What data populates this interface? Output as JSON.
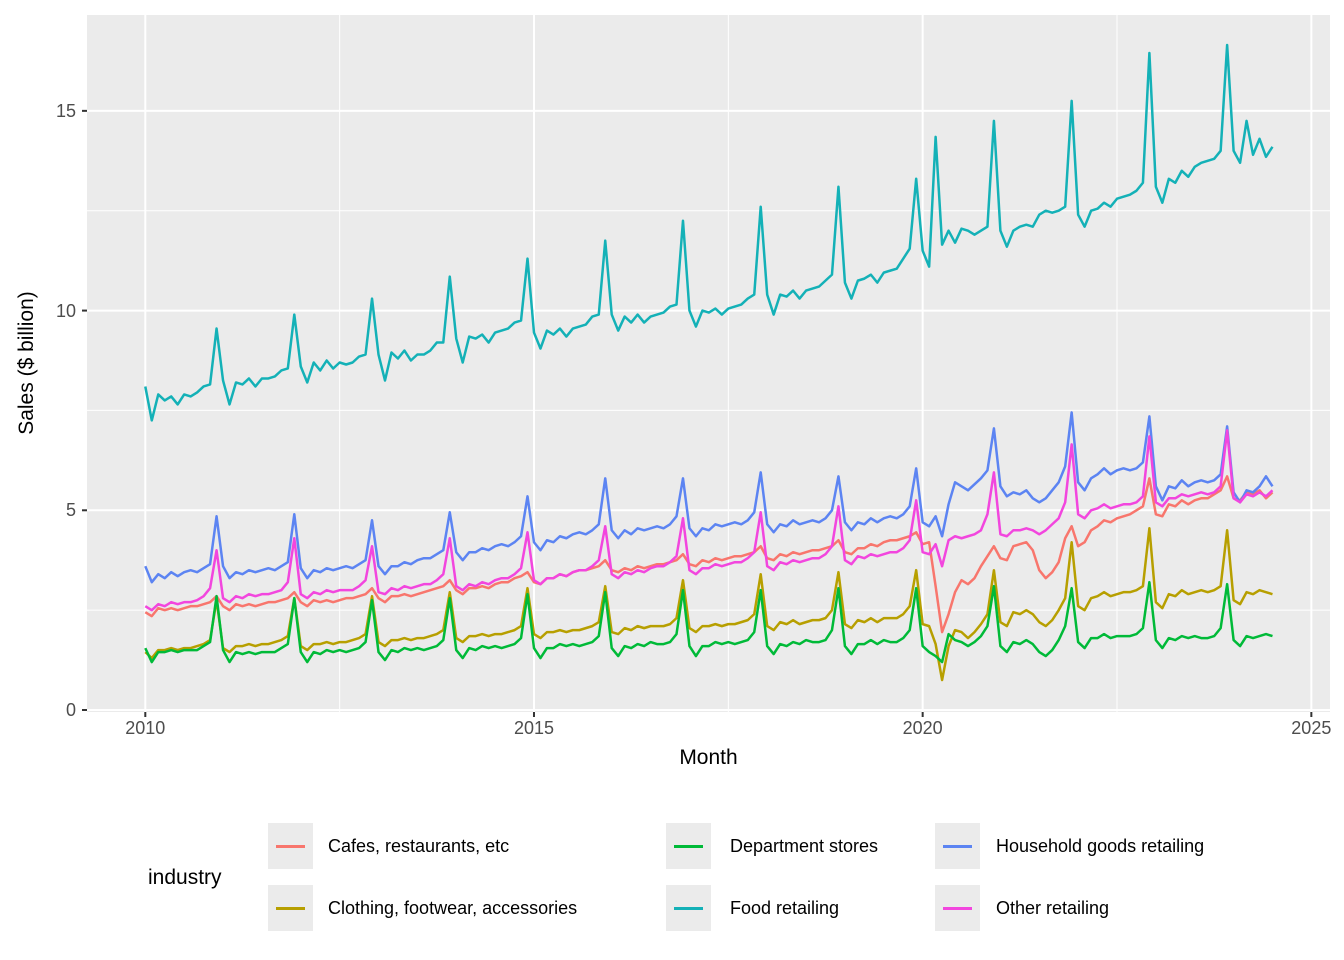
{
  "chart_data": {
    "type": "line",
    "title": "",
    "xlabel": "Month",
    "ylabel": "Sales ($ billion)",
    "legend_title": "industry",
    "x_start": 2010.0,
    "x_step": 0.08333333,
    "x_frequency": "monthly",
    "x_end": 2024.5,
    "x_range_plotted": [
      2009.25,
      2025.24
    ],
    "ylim_plotted": [
      -0.05,
      17.4
    ],
    "x_major_ticks": [
      2010,
      2015,
      2020,
      2025
    ],
    "x_tick_labels": [
      "2010",
      "2015",
      "2020",
      "2025"
    ],
    "x_minor_gridlines": [
      2012.5,
      2017.5,
      2022.5
    ],
    "y_major_ticks": [
      0,
      5,
      10,
      15
    ],
    "y_tick_labels": [
      "0",
      "5",
      "10",
      "15"
    ],
    "y_minor_gridlines": [
      2.5,
      7.5,
      12.5
    ],
    "grid": "on",
    "panel_background": "#ebebeb",
    "gridline_color": "#ffffff",
    "tick_color": "#333333",
    "tick_label_color": "#4d4d4d",
    "legend_position": "bottom",
    "series": [
      {
        "name": "Cafes, restaurants, etc",
        "color": "#F8766D",
        "values": [
          2.45,
          2.35,
          2.55,
          2.5,
          2.55,
          2.5,
          2.55,
          2.6,
          2.6,
          2.65,
          2.7,
          2.85,
          2.6,
          2.5,
          2.65,
          2.6,
          2.65,
          2.6,
          2.65,
          2.7,
          2.7,
          2.75,
          2.8,
          2.95,
          2.7,
          2.6,
          2.75,
          2.7,
          2.75,
          2.7,
          2.75,
          2.8,
          2.8,
          2.85,
          2.9,
          3.05,
          2.8,
          2.7,
          2.85,
          2.85,
          2.9,
          2.85,
          2.9,
          2.95,
          3.0,
          3.05,
          3.1,
          3.25,
          3.0,
          2.9,
          3.05,
          3.05,
          3.1,
          3.05,
          3.15,
          3.2,
          3.2,
          3.3,
          3.35,
          3.45,
          3.2,
          3.15,
          3.3,
          3.3,
          3.4,
          3.35,
          3.45,
          3.5,
          3.5,
          3.55,
          3.6,
          3.75,
          3.5,
          3.45,
          3.55,
          3.5,
          3.6,
          3.55,
          3.6,
          3.65,
          3.65,
          3.7,
          3.75,
          3.9,
          3.65,
          3.6,
          3.75,
          3.7,
          3.8,
          3.75,
          3.8,
          3.85,
          3.85,
          3.9,
          3.95,
          4.1,
          3.8,
          3.75,
          3.9,
          3.85,
          3.95,
          3.9,
          3.95,
          4.0,
          4.0,
          4.05,
          4.1,
          4.25,
          3.95,
          3.9,
          4.05,
          4.05,
          4.15,
          4.1,
          4.2,
          4.25,
          4.25,
          4.3,
          4.35,
          4.45,
          4.15,
          4.2,
          3.1,
          1.95,
          2.4,
          2.95,
          3.25,
          3.15,
          3.3,
          3.6,
          3.85,
          4.1,
          3.8,
          3.75,
          4.1,
          4.15,
          4.2,
          4.0,
          3.5,
          3.3,
          3.45,
          3.7,
          4.3,
          4.6,
          4.1,
          4.2,
          4.5,
          4.6,
          4.75,
          4.7,
          4.8,
          4.85,
          4.9,
          5.0,
          5.1,
          5.8,
          4.9,
          4.85,
          5.15,
          5.1,
          5.25,
          5.15,
          5.25,
          5.3,
          5.3,
          5.4,
          5.5,
          5.85,
          5.3,
          5.25,
          5.45,
          5.4,
          5.5,
          5.3,
          5.45
        ]
      },
      {
        "name": "Clothing, footwear, accessories",
        "color": "#B79F00",
        "values": [
          1.45,
          1.3,
          1.5,
          1.5,
          1.55,
          1.5,
          1.55,
          1.55,
          1.6,
          1.65,
          1.75,
          2.75,
          1.55,
          1.45,
          1.6,
          1.6,
          1.65,
          1.6,
          1.65,
          1.65,
          1.7,
          1.75,
          1.85,
          2.8,
          1.6,
          1.5,
          1.65,
          1.65,
          1.7,
          1.65,
          1.7,
          1.7,
          1.75,
          1.8,
          1.9,
          2.85,
          1.7,
          1.6,
          1.75,
          1.75,
          1.8,
          1.75,
          1.8,
          1.8,
          1.85,
          1.9,
          2.0,
          2.95,
          1.8,
          1.7,
          1.85,
          1.85,
          1.9,
          1.85,
          1.9,
          1.9,
          1.95,
          2.0,
          2.1,
          3.05,
          1.9,
          1.8,
          1.95,
          1.95,
          2.0,
          1.95,
          2.0,
          2.0,
          2.05,
          2.1,
          2.2,
          3.1,
          1.95,
          1.9,
          2.05,
          2.0,
          2.1,
          2.05,
          2.1,
          2.1,
          2.1,
          2.15,
          2.3,
          3.25,
          2.05,
          1.95,
          2.1,
          2.1,
          2.15,
          2.1,
          2.15,
          2.15,
          2.2,
          2.25,
          2.4,
          3.4,
          2.1,
          2.0,
          2.2,
          2.15,
          2.25,
          2.15,
          2.2,
          2.25,
          2.25,
          2.3,
          2.5,
          3.45,
          2.15,
          2.05,
          2.25,
          2.2,
          2.3,
          2.2,
          2.3,
          2.3,
          2.3,
          2.4,
          2.6,
          3.5,
          2.15,
          2.1,
          1.65,
          0.75,
          1.6,
          2.0,
          1.95,
          1.8,
          1.95,
          2.15,
          2.4,
          3.5,
          2.2,
          2.1,
          2.45,
          2.4,
          2.5,
          2.4,
          2.2,
          2.1,
          2.25,
          2.5,
          2.8,
          4.2,
          2.6,
          2.5,
          2.8,
          2.85,
          2.95,
          2.85,
          2.9,
          2.95,
          2.95,
          3.0,
          3.1,
          4.55,
          2.7,
          2.55,
          2.9,
          2.85,
          3.0,
          2.9,
          2.95,
          3.0,
          2.95,
          3.0,
          3.1,
          4.5,
          2.75,
          2.65,
          2.95,
          2.9,
          3.0,
          2.95,
          2.9
        ]
      },
      {
        "name": "Department stores",
        "color": "#00BA38",
        "values": [
          1.55,
          1.2,
          1.45,
          1.45,
          1.5,
          1.45,
          1.5,
          1.5,
          1.5,
          1.6,
          1.7,
          2.85,
          1.5,
          1.2,
          1.45,
          1.4,
          1.45,
          1.4,
          1.45,
          1.45,
          1.45,
          1.55,
          1.65,
          2.8,
          1.45,
          1.2,
          1.45,
          1.4,
          1.5,
          1.45,
          1.5,
          1.45,
          1.5,
          1.55,
          1.7,
          2.75,
          1.45,
          1.25,
          1.5,
          1.45,
          1.55,
          1.5,
          1.55,
          1.5,
          1.55,
          1.6,
          1.75,
          2.8,
          1.5,
          1.3,
          1.55,
          1.5,
          1.6,
          1.55,
          1.6,
          1.55,
          1.6,
          1.65,
          1.8,
          2.9,
          1.55,
          1.3,
          1.55,
          1.55,
          1.65,
          1.6,
          1.65,
          1.6,
          1.65,
          1.7,
          1.85,
          2.95,
          1.55,
          1.35,
          1.6,
          1.55,
          1.65,
          1.6,
          1.7,
          1.65,
          1.65,
          1.7,
          1.9,
          3.0,
          1.6,
          1.35,
          1.6,
          1.6,
          1.7,
          1.65,
          1.7,
          1.65,
          1.7,
          1.75,
          1.95,
          3.0,
          1.6,
          1.4,
          1.65,
          1.6,
          1.7,
          1.65,
          1.75,
          1.7,
          1.7,
          1.75,
          2.0,
          3.05,
          1.6,
          1.4,
          1.65,
          1.65,
          1.75,
          1.65,
          1.75,
          1.7,
          1.7,
          1.8,
          2.0,
          3.05,
          1.6,
          1.45,
          1.35,
          1.2,
          1.9,
          1.75,
          1.7,
          1.6,
          1.7,
          1.85,
          2.1,
          3.1,
          1.6,
          1.45,
          1.7,
          1.65,
          1.75,
          1.65,
          1.45,
          1.35,
          1.5,
          1.75,
          2.1,
          3.05,
          1.7,
          1.55,
          1.8,
          1.8,
          1.9,
          1.8,
          1.85,
          1.85,
          1.85,
          1.9,
          2.05,
          3.2,
          1.75,
          1.55,
          1.8,
          1.75,
          1.85,
          1.8,
          1.85,
          1.8,
          1.8,
          1.85,
          2.05,
          3.15,
          1.75,
          1.6,
          1.85,
          1.8,
          1.85,
          1.9,
          1.85
        ]
      },
      {
        "name": "Food retailing",
        "color": "#14B1B7",
        "values": [
          8.1,
          7.25,
          7.9,
          7.75,
          7.85,
          7.65,
          7.9,
          7.85,
          7.95,
          8.1,
          8.15,
          9.55,
          8.25,
          7.65,
          8.2,
          8.15,
          8.3,
          8.1,
          8.3,
          8.3,
          8.35,
          8.5,
          8.55,
          9.9,
          8.6,
          8.2,
          8.7,
          8.5,
          8.75,
          8.55,
          8.7,
          8.65,
          8.7,
          8.85,
          8.9,
          10.3,
          8.9,
          8.25,
          8.95,
          8.8,
          9.0,
          8.75,
          8.9,
          8.9,
          9.0,
          9.2,
          9.2,
          10.85,
          9.3,
          8.7,
          9.35,
          9.3,
          9.4,
          9.2,
          9.45,
          9.5,
          9.55,
          9.7,
          9.75,
          11.3,
          9.45,
          9.05,
          9.5,
          9.4,
          9.55,
          9.35,
          9.55,
          9.6,
          9.65,
          9.85,
          9.9,
          11.75,
          9.9,
          9.5,
          9.85,
          9.7,
          9.9,
          9.7,
          9.85,
          9.9,
          9.95,
          10.1,
          10.15,
          12.25,
          10.0,
          9.6,
          10.0,
          9.95,
          10.05,
          9.9,
          10.05,
          10.1,
          10.15,
          10.3,
          10.4,
          12.6,
          10.4,
          9.9,
          10.4,
          10.35,
          10.5,
          10.3,
          10.5,
          10.55,
          10.6,
          10.75,
          10.9,
          13.1,
          10.7,
          10.3,
          10.75,
          10.8,
          10.9,
          10.7,
          10.95,
          11.0,
          11.05,
          11.3,
          11.55,
          13.3,
          11.5,
          11.1,
          14.35,
          11.65,
          12.0,
          11.7,
          12.05,
          12.0,
          11.9,
          12.0,
          12.1,
          14.75,
          12.0,
          11.6,
          12.0,
          12.1,
          12.15,
          12.1,
          12.4,
          12.5,
          12.45,
          12.5,
          12.6,
          15.25,
          12.4,
          12.1,
          12.5,
          12.55,
          12.7,
          12.6,
          12.8,
          12.85,
          12.9,
          13.0,
          13.2,
          16.45,
          13.1,
          12.7,
          13.3,
          13.2,
          13.5,
          13.35,
          13.6,
          13.7,
          13.75,
          13.8,
          14.0,
          16.65,
          14.0,
          13.7,
          14.75,
          13.9,
          14.3,
          13.85,
          14.1
        ]
      },
      {
        "name": "Household goods retailing",
        "color": "#5C84F2",
        "values": [
          3.6,
          3.2,
          3.4,
          3.3,
          3.45,
          3.35,
          3.45,
          3.5,
          3.45,
          3.55,
          3.65,
          4.85,
          3.6,
          3.3,
          3.45,
          3.4,
          3.5,
          3.45,
          3.5,
          3.55,
          3.5,
          3.6,
          3.7,
          4.9,
          3.55,
          3.3,
          3.5,
          3.45,
          3.55,
          3.5,
          3.55,
          3.6,
          3.55,
          3.65,
          3.75,
          4.75,
          3.6,
          3.4,
          3.6,
          3.6,
          3.7,
          3.65,
          3.75,
          3.8,
          3.8,
          3.9,
          4.0,
          4.95,
          3.95,
          3.75,
          3.95,
          3.95,
          4.05,
          4.0,
          4.1,
          4.15,
          4.1,
          4.2,
          4.35,
          5.35,
          4.2,
          4.0,
          4.25,
          4.2,
          4.35,
          4.3,
          4.4,
          4.45,
          4.4,
          4.5,
          4.65,
          5.8,
          4.5,
          4.3,
          4.5,
          4.4,
          4.55,
          4.5,
          4.55,
          4.6,
          4.55,
          4.65,
          4.85,
          5.8,
          4.55,
          4.35,
          4.55,
          4.5,
          4.65,
          4.6,
          4.65,
          4.7,
          4.65,
          4.75,
          4.95,
          5.95,
          4.65,
          4.45,
          4.65,
          4.6,
          4.75,
          4.65,
          4.7,
          4.75,
          4.7,
          4.8,
          5.0,
          5.85,
          4.7,
          4.5,
          4.7,
          4.65,
          4.8,
          4.7,
          4.8,
          4.85,
          4.8,
          4.9,
          5.1,
          6.05,
          4.7,
          4.6,
          4.85,
          4.35,
          5.15,
          5.7,
          5.6,
          5.5,
          5.65,
          5.8,
          6.0,
          7.05,
          5.6,
          5.35,
          5.45,
          5.4,
          5.5,
          5.3,
          5.2,
          5.3,
          5.5,
          5.7,
          6.1,
          7.45,
          5.7,
          5.5,
          5.8,
          5.9,
          6.05,
          5.9,
          6.0,
          6.05,
          6.0,
          6.05,
          6.2,
          7.35,
          5.6,
          5.25,
          5.6,
          5.55,
          5.75,
          5.6,
          5.7,
          5.75,
          5.7,
          5.75,
          5.9,
          7.1,
          5.45,
          5.2,
          5.5,
          5.45,
          5.6,
          5.85,
          5.6
        ]
      },
      {
        "name": "Other retailing",
        "color": "#F246DE",
        "values": [
          2.6,
          2.5,
          2.65,
          2.6,
          2.7,
          2.65,
          2.7,
          2.7,
          2.75,
          2.85,
          3.05,
          4.0,
          2.8,
          2.7,
          2.85,
          2.8,
          2.9,
          2.85,
          2.9,
          2.9,
          2.95,
          3.0,
          3.2,
          4.3,
          2.9,
          2.8,
          2.95,
          2.9,
          3.0,
          2.95,
          3.0,
          3.0,
          3.0,
          3.1,
          3.25,
          4.1,
          2.95,
          2.9,
          3.05,
          3.0,
          3.1,
          3.05,
          3.1,
          3.15,
          3.15,
          3.25,
          3.4,
          4.3,
          3.1,
          3.0,
          3.15,
          3.1,
          3.2,
          3.15,
          3.25,
          3.3,
          3.3,
          3.4,
          3.55,
          4.45,
          3.25,
          3.15,
          3.3,
          3.3,
          3.4,
          3.35,
          3.45,
          3.5,
          3.5,
          3.6,
          3.75,
          4.6,
          3.4,
          3.3,
          3.45,
          3.4,
          3.5,
          3.45,
          3.55,
          3.6,
          3.6,
          3.7,
          3.85,
          4.8,
          3.5,
          3.4,
          3.55,
          3.55,
          3.65,
          3.6,
          3.65,
          3.7,
          3.7,
          3.8,
          3.95,
          4.95,
          3.6,
          3.5,
          3.7,
          3.65,
          3.75,
          3.7,
          3.75,
          3.8,
          3.8,
          3.9,
          4.1,
          5.1,
          3.75,
          3.65,
          3.85,
          3.8,
          3.9,
          3.85,
          3.9,
          3.95,
          3.95,
          4.05,
          4.25,
          5.25,
          3.95,
          3.9,
          4.15,
          3.6,
          4.25,
          4.35,
          4.3,
          4.35,
          4.4,
          4.5,
          4.9,
          5.95,
          4.4,
          4.35,
          4.5,
          4.5,
          4.55,
          4.5,
          4.4,
          4.5,
          4.65,
          4.8,
          5.2,
          6.65,
          4.9,
          4.8,
          5.0,
          5.05,
          5.15,
          5.05,
          5.1,
          5.15,
          5.15,
          5.2,
          5.35,
          6.85,
          5.2,
          5.1,
          5.3,
          5.3,
          5.4,
          5.35,
          5.4,
          5.45,
          5.4,
          5.45,
          5.6,
          7.0,
          5.3,
          5.2,
          5.4,
          5.35,
          5.45,
          5.35,
          5.5
        ]
      }
    ]
  },
  "legend": {
    "title": "industry",
    "items": [
      "Cafes, restaurants, etc",
      "Clothing, footwear, accessories",
      "Department stores",
      "Food retailing",
      "Household goods retailing",
      "Other retailing"
    ]
  }
}
